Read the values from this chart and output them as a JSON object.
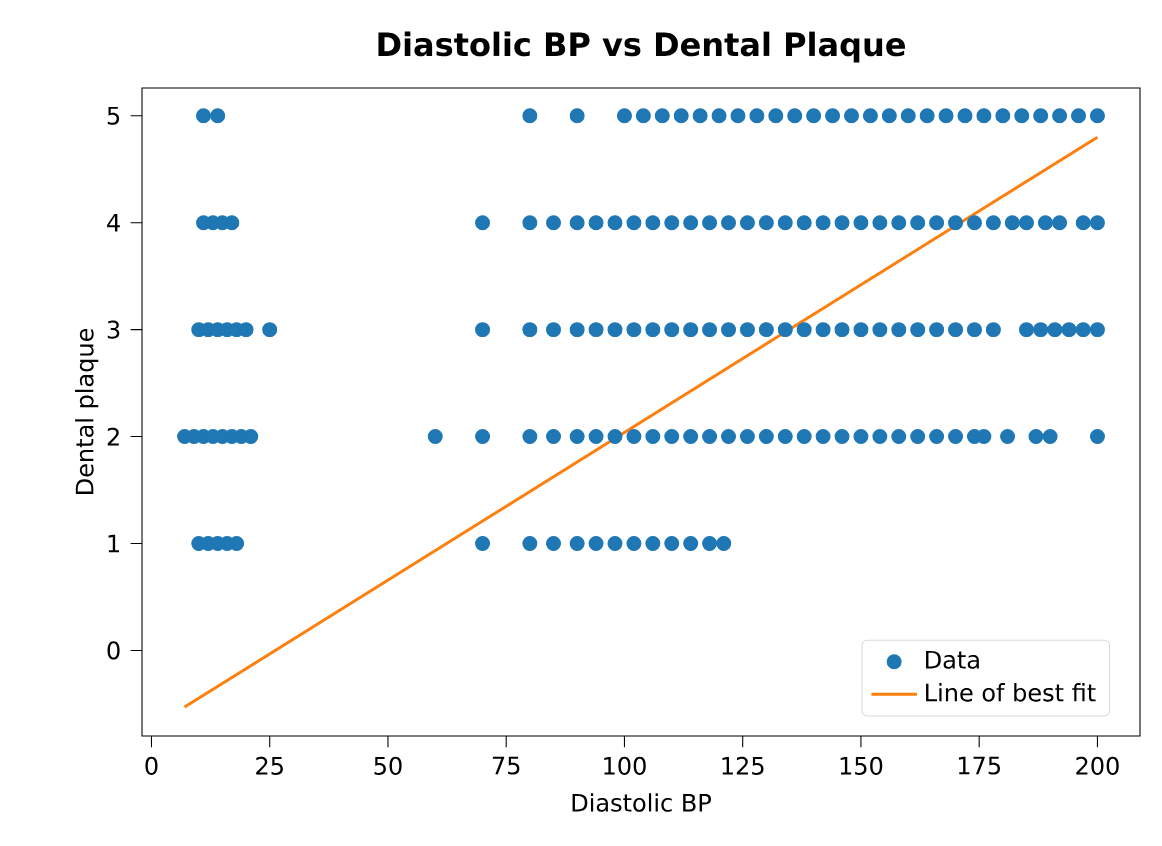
{
  "chart_data": {
    "type": "scatter",
    "title": "Diastolic BP vs Dental Plaque",
    "xlabel": "Diastolic BP",
    "ylabel": "Dental plaque",
    "xlim": [
      -2,
      209
    ],
    "ylim": [
      -0.8,
      5.26
    ],
    "xticks": [
      0,
      25,
      50,
      75,
      100,
      125,
      150,
      175,
      200
    ],
    "yticks": [
      0,
      1,
      2,
      3,
      4,
      5
    ],
    "grid": false,
    "legend": "bottom right",
    "series": [
      {
        "name": "Data",
        "marker": "circle",
        "color": "#1f77b4",
        "x": [
          11,
          14,
          80,
          90,
          100,
          104,
          108,
          112,
          116,
          120,
          124,
          128,
          132,
          136,
          140,
          144,
          148,
          152,
          156,
          160,
          164,
          168,
          172,
          176,
          180,
          184,
          188,
          192,
          196,
          200,
          11,
          13,
          15,
          17,
          70,
          80,
          85,
          90,
          94,
          98,
          102,
          106,
          110,
          114,
          118,
          122,
          126,
          130,
          134,
          138,
          142,
          146,
          150,
          154,
          158,
          162,
          166,
          170,
          174,
          178,
          182,
          185,
          189,
          192,
          197,
          200,
          10,
          12,
          14,
          16,
          18,
          20,
          25,
          70,
          80,
          85,
          90,
          94,
          98,
          102,
          106,
          110,
          114,
          118,
          122,
          126,
          130,
          134,
          138,
          142,
          146,
          150,
          154,
          158,
          162,
          166,
          170,
          174,
          178,
          185,
          188,
          191,
          194,
          197,
          200,
          7,
          9,
          11,
          13,
          15,
          17,
          19,
          21,
          60,
          70,
          80,
          85,
          90,
          94,
          98,
          102,
          106,
          110,
          114,
          118,
          122,
          126,
          130,
          134,
          138,
          142,
          146,
          150,
          154,
          158,
          162,
          166,
          170,
          174,
          176,
          181,
          187,
          190,
          200,
          10,
          12,
          14,
          16,
          18,
          70,
          80,
          85,
          90,
          94,
          98,
          102,
          106,
          110,
          114,
          118,
          121
        ],
        "values": [
          5,
          5,
          5,
          5,
          5,
          5,
          5,
          5,
          5,
          5,
          5,
          5,
          5,
          5,
          5,
          5,
          5,
          5,
          5,
          5,
          5,
          5,
          5,
          5,
          5,
          5,
          5,
          5,
          5,
          5,
          4,
          4,
          4,
          4,
          4,
          4,
          4,
          4,
          4,
          4,
          4,
          4,
          4,
          4,
          4,
          4,
          4,
          4,
          4,
          4,
          4,
          4,
          4,
          4,
          4,
          4,
          4,
          4,
          4,
          4,
          4,
          4,
          4,
          4,
          4,
          4,
          3,
          3,
          3,
          3,
          3,
          3,
          3,
          3,
          3,
          3,
          3,
          3,
          3,
          3,
          3,
          3,
          3,
          3,
          3,
          3,
          3,
          3,
          3,
          3,
          3,
          3,
          3,
          3,
          3,
          3,
          3,
          3,
          3,
          3,
          3,
          3,
          3,
          3,
          3,
          2,
          2,
          2,
          2,
          2,
          2,
          2,
          2,
          2,
          2,
          2,
          2,
          2,
          2,
          2,
          2,
          2,
          2,
          2,
          2,
          2,
          2,
          2,
          2,
          2,
          2,
          2,
          2,
          2,
          2,
          2,
          2,
          2,
          2,
          2,
          2,
          2,
          2,
          2,
          1,
          1,
          1,
          1,
          1,
          1,
          1,
          1,
          1,
          1,
          1,
          1,
          1,
          1,
          1,
          1,
          1
        ]
      },
      {
        "name": "Line of best fit",
        "type": "line",
        "marker": "none",
        "line_style": "solid",
        "color": "#ff7f0e",
        "x": [
          7,
          200
        ],
        "values": [
          -0.53,
          4.8
        ]
      }
    ]
  }
}
